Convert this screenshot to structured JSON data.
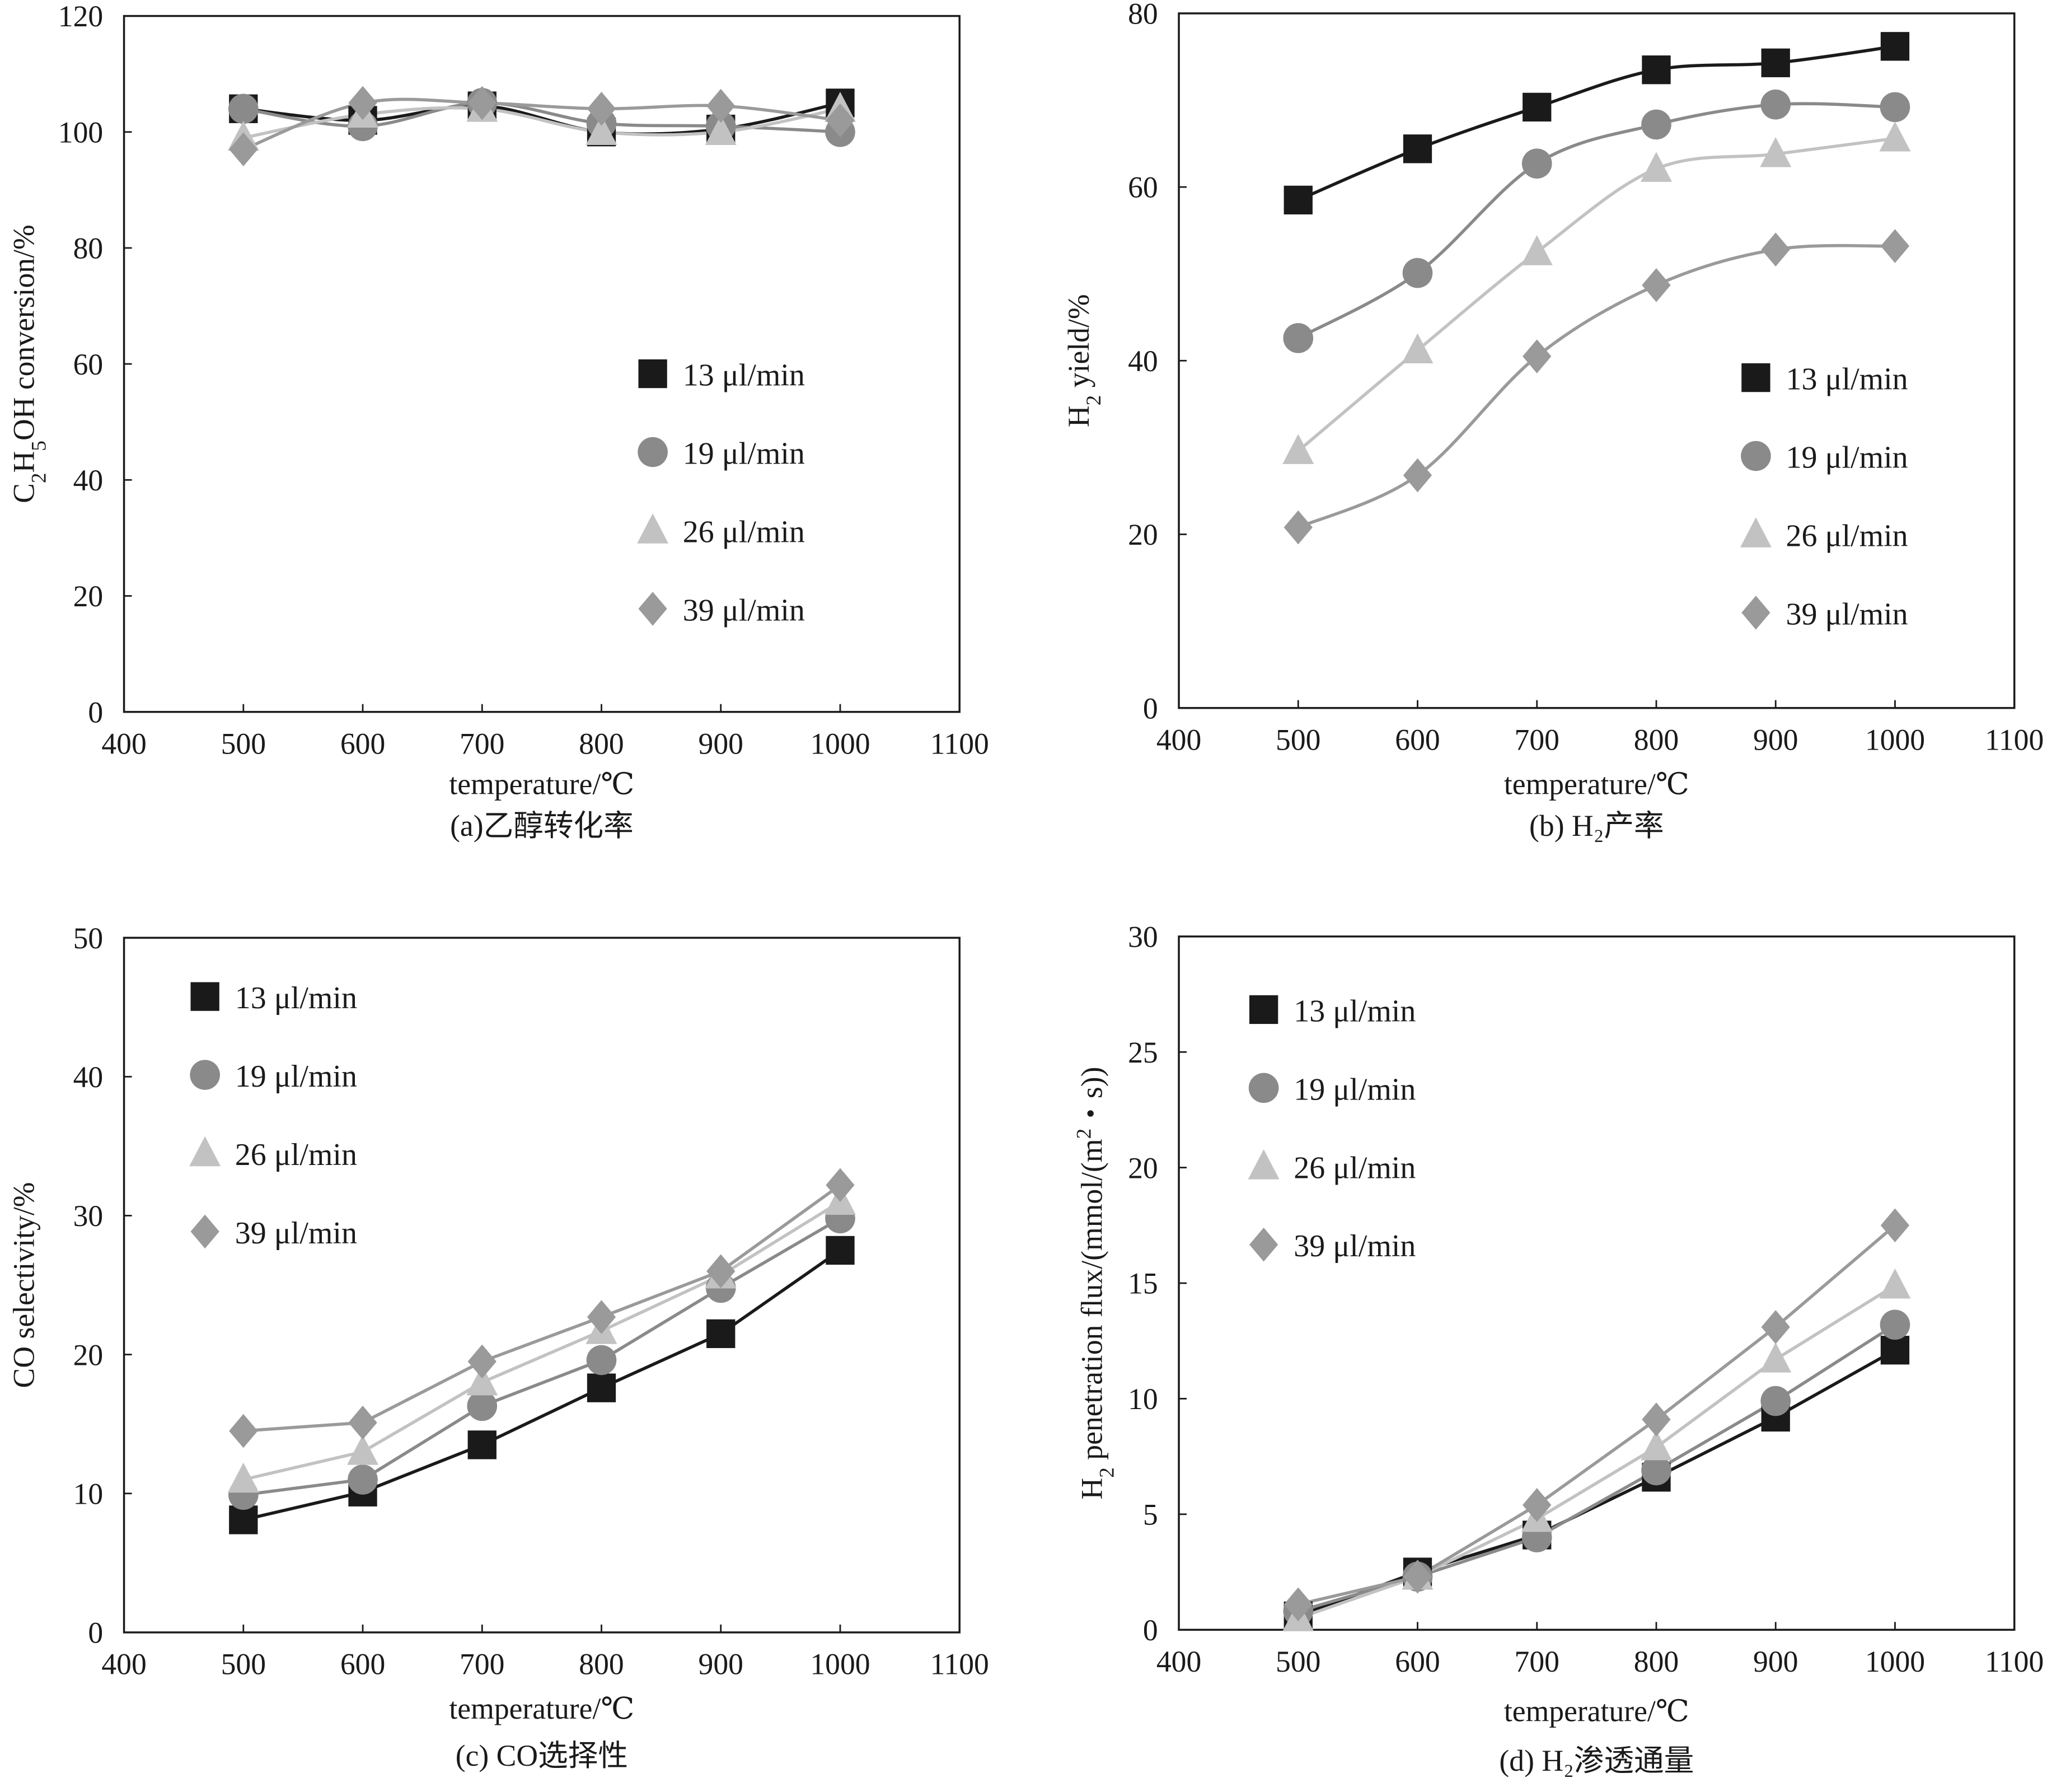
{
  "series_styles": [
    {
      "name": "13 μl/min",
      "marker": "square",
      "color": "#1a1a1a"
    },
    {
      "name": "19 μl/min",
      "marker": "circle",
      "color": "#8a8a8a"
    },
    {
      "name": "26 μl/min",
      "marker": "triangle",
      "color": "#c2c2c2"
    },
    {
      "name": "39 μl/min",
      "marker": "diamond",
      "color": "#9a9a9a"
    }
  ],
  "chart_data": [
    {
      "type": "line",
      "smooth": true,
      "caption": "(a)乙醇转化率",
      "xlabel": "temperature/℃",
      "ylabel": [
        {
          "t": "C"
        },
        {
          "t": "2",
          "sub": true
        },
        {
          "t": "H"
        },
        {
          "t": "5",
          "sub": true
        },
        {
          "t": "OH conversion/%"
        }
      ],
      "xlim": [
        400,
        1100
      ],
      "xticks": [
        400,
        500,
        600,
        700,
        800,
        900,
        1000,
        1100
      ],
      "ylim": [
        0,
        120
      ],
      "yticks": [
        0,
        20,
        40,
        60,
        80,
        100,
        120
      ],
      "legend": "center-right",
      "x": [
        500,
        600,
        700,
        800,
        900,
        1000
      ],
      "series": [
        {
          "name": "13 μl/min",
          "values": [
            104,
            102,
            104.5,
            100,
            100.5,
            105
          ]
        },
        {
          "name": "19 μl/min",
          "values": [
            104,
            101,
            105,
            101.5,
            101,
            100
          ]
        },
        {
          "name": "26 μl/min",
          "values": [
            99,
            103,
            104,
            100,
            100,
            104
          ]
        },
        {
          "name": "39 μl/min",
          "values": [
            97,
            105,
            105,
            104,
            104.5,
            102
          ]
        }
      ]
    },
    {
      "type": "line",
      "smooth": true,
      "caption": "(b) H₂产率",
      "xlabel": "temperature/℃",
      "ylabel": [
        {
          "t": "H"
        },
        {
          "t": "2",
          "sub": true
        },
        {
          "t": " yield/%"
        }
      ],
      "xlim": [
        400,
        1100
      ],
      "xticks": [
        400,
        500,
        600,
        700,
        800,
        900,
        1000,
        1100
      ],
      "ylim": [
        0,
        80
      ],
      "yticks": [
        0,
        20,
        40,
        60,
        80
      ],
      "legend": "bottom-right",
      "x": [
        500,
        600,
        700,
        800,
        900,
        1000
      ],
      "series": [
        {
          "name": "13 μl/min",
          "values": [
            58.5,
            64.4,
            69.2,
            73.5,
            74.3,
            76.2
          ]
        },
        {
          "name": "19 μl/min",
          "values": [
            42.6,
            50.1,
            62.7,
            67.2,
            69.5,
            69.2
          ]
        },
        {
          "name": "26 μl/min",
          "values": [
            29.6,
            41.2,
            52.5,
            62.1,
            63.8,
            65.6
          ]
        },
        {
          "name": "39 μl/min",
          "values": [
            20.8,
            26.8,
            40.5,
            48.7,
            52.8,
            53.2
          ]
        }
      ]
    },
    {
      "type": "line",
      "smooth": false,
      "caption": "(c) CO选择性",
      "xlabel": "temperature/℃",
      "ylabel": [
        {
          "t": "CO selectivity/%"
        }
      ],
      "xlim": [
        400,
        1100
      ],
      "xticks": [
        400,
        500,
        600,
        700,
        800,
        900,
        1000,
        1100
      ],
      "ylim": [
        0,
        50
      ],
      "yticks": [
        0,
        10,
        20,
        30,
        40,
        50
      ],
      "legend": "top-left",
      "x": [
        500,
        600,
        700,
        800,
        900,
        1000
      ],
      "series": [
        {
          "name": "13 μl/min",
          "values": [
            8.1,
            10.1,
            13.5,
            17.6,
            21.5,
            27.5
          ]
        },
        {
          "name": "19 μl/min",
          "values": [
            9.9,
            11,
            16.3,
            19.6,
            24.8,
            29.8
          ]
        },
        {
          "name": "26 μl/min",
          "values": [
            11,
            13,
            18,
            21.7,
            25.7,
            31
          ]
        },
        {
          "name": "39 μl/min",
          "values": [
            14.5,
            15.1,
            19.5,
            22.7,
            26,
            32.2
          ]
        }
      ]
    },
    {
      "type": "line",
      "smooth": false,
      "caption": "(d) H₂渗透通量",
      "xlabel": "temperature/℃",
      "ylabel": [
        {
          "t": "H"
        },
        {
          "t": "2",
          "sub": true
        },
        {
          "t": " penetration flux/(mmol/(m"
        },
        {
          "t": "2",
          "sup": true
        },
        {
          "t": "・s))"
        }
      ],
      "xlim": [
        400,
        1100
      ],
      "xticks": [
        400,
        500,
        600,
        700,
        800,
        900,
        1000,
        1100
      ],
      "ylim": [
        0,
        30
      ],
      "yticks": [
        0,
        5,
        10,
        15,
        20,
        25,
        30
      ],
      "legend": "top-left",
      "x": [
        500,
        600,
        700,
        800,
        900,
        1000
      ],
      "series": [
        {
          "name": "13 μl/min",
          "values": [
            0.6,
            2.5,
            4.1,
            6.6,
            9.2,
            12.1
          ]
        },
        {
          "name": "19 μl/min",
          "values": [
            0.8,
            2.3,
            4.0,
            6.9,
            9.9,
            13.2
          ]
        },
        {
          "name": "26 μl/min",
          "values": [
            0.5,
            2.3,
            4.8,
            7.9,
            11.7,
            14.9
          ]
        },
        {
          "name": "39 μl/min",
          "values": [
            1.1,
            2.3,
            5.4,
            9.1,
            13.1,
            17.5
          ]
        }
      ]
    }
  ]
}
